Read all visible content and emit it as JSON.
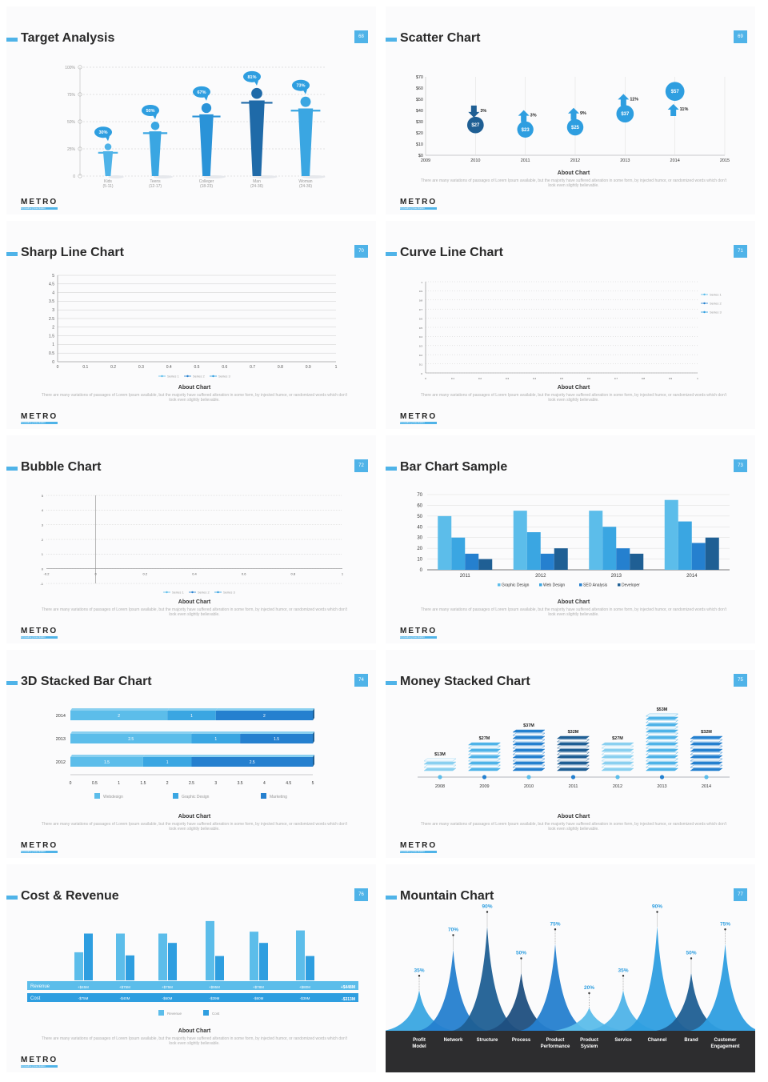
{
  "about_title": "About Chart",
  "about_text": "There are many variations of passages of Lorem Ipsum available, but the majority have suffered alteration in some form, by injected humor, or randomized words which don't look even slightly believable.",
  "logo": {
    "word": "METRO",
    "tagline": "innovative presentation"
  },
  "colors": {
    "accent": "#4fb3e8",
    "blue1": "#5cbdea",
    "blue2": "#2e9ee0",
    "blue3": "#2580cf",
    "blue4": "#1f6aa8",
    "dark": "#2d2d2f"
  },
  "slides": {
    "target": {
      "title": "Target Analysis",
      "number": "68",
      "chart_data": {
        "type": "bar",
        "categories": [
          "Kids\n(5-11)",
          "Teens\n(12-17)",
          "Colleger\n(18-23)",
          "Man\n(24-36)",
          "Woman\n(24-36)"
        ],
        "category_names": [
          "Kids",
          "Teens",
          "Colleger",
          "Man",
          "Woman"
        ],
        "category_ranges": [
          "(5-11)",
          "(12-17)",
          "(18-23)",
          "(24-36)",
          "(24-36)"
        ],
        "values": [
          30,
          50,
          67,
          81,
          73
        ],
        "labels": [
          "30%",
          "50%",
          "67%",
          "81%",
          "73%"
        ],
        "yticks": [
          "100%",
          "75%",
          "50%",
          "25%",
          "0"
        ],
        "ylim": [
          0,
          100
        ]
      }
    },
    "scatter": {
      "title": "Scatter Chart",
      "number": "69",
      "chart_data": {
        "type": "scatter",
        "x": [
          2010,
          2011,
          2012,
          2013,
          2014
        ],
        "values": [
          27,
          23,
          25,
          37,
          57
        ],
        "labels": [
          "$27",
          "$23",
          "$25",
          "$37",
          "$57"
        ],
        "changes": [
          "3%",
          "3%",
          "9%",
          "11%",
          "11%"
        ],
        "directions": [
          "down",
          "up",
          "up",
          "up",
          "up"
        ],
        "xticks": [
          "2009",
          "2010",
          "2011",
          "2012",
          "2013",
          "2014",
          "2015"
        ],
        "yticks": [
          "$70",
          "$60",
          "$50",
          "$40",
          "$30",
          "$20",
          "$10",
          "$0"
        ],
        "ylim": [
          0,
          70
        ]
      }
    },
    "sharp": {
      "title": "Sharp Line Chart",
      "number": "70",
      "chart_data": {
        "type": "line",
        "yticks": [
          "5",
          "4.5",
          "4",
          "3.5",
          "3",
          "2.5",
          "2",
          "1.5",
          "1",
          "0.5",
          "0"
        ],
        "xticks": [
          "0",
          "0.1",
          "0.2",
          "0.3",
          "0.4",
          "0.5",
          "0.6",
          "0.7",
          "0.8",
          "0.9",
          "1"
        ],
        "legend": [
          "Series 1",
          "Series 2",
          "Series 3"
        ],
        "ylim": [
          0,
          5
        ],
        "xlim": [
          0,
          1
        ]
      }
    },
    "curve": {
      "title": "Curve Line Chart",
      "number": "71",
      "chart_data": {
        "type": "line",
        "yticks": [
          "1",
          "0.9",
          "0.8",
          "0.7",
          "0.6",
          "0.5",
          "0.4",
          "0.3",
          "0.2",
          "0.1",
          "0"
        ],
        "xticks": [
          "0",
          "0.1",
          "0.2",
          "0.3",
          "0.4",
          "0.5",
          "0.6",
          "0.7",
          "0.8",
          "0.9",
          "1"
        ],
        "legend": [
          "Series 1",
          "Series 2",
          "Series 3"
        ],
        "ylim": [
          0,
          1
        ],
        "xlim": [
          0,
          1
        ]
      }
    },
    "bubble": {
      "title": "Bubble Chart",
      "number": "72",
      "chart_data": {
        "type": "scatter",
        "yticks": [
          "5",
          "4",
          "3",
          "2",
          "1",
          "0",
          "-1"
        ],
        "xticks": [
          "-0.2",
          "0",
          "0.2",
          "0.4",
          "0.6",
          "0.8",
          "1"
        ],
        "legend": [
          "Series 1",
          "Series 2",
          "Series 3"
        ],
        "ylim": [
          -1,
          5
        ],
        "xlim": [
          -0.2,
          1
        ]
      }
    },
    "barsample": {
      "title": "Bar Chart Sample",
      "number": "73",
      "chart_data": {
        "type": "bar",
        "categories": [
          "2011",
          "2012",
          "2013",
          "2014"
        ],
        "series": [
          {
            "name": "Graphic Design",
            "values": [
              50,
              55,
              55,
              65
            ]
          },
          {
            "name": "Web Design",
            "values": [
              30,
              35,
              40,
              45
            ]
          },
          {
            "name": "SEO Analysis",
            "values": [
              15,
              15,
              20,
              25
            ]
          },
          {
            "name": "Developer",
            "values": [
              10,
              20,
              15,
              30
            ]
          }
        ],
        "yticks": [
          "70",
          "60",
          "50",
          "40",
          "30",
          "20",
          "10",
          "0"
        ],
        "ylim": [
          0,
          70
        ]
      }
    },
    "stacked3d": {
      "title": "3D Stacked Bar Chart",
      "number": "74",
      "chart_data": {
        "type": "bar",
        "orientation": "horizontal",
        "categories": [
          "2014",
          "2013",
          "2012"
        ],
        "series": [
          {
            "name": "Webdesign",
            "values": [
              2,
              2.5,
              1.5
            ]
          },
          {
            "name": "Graphic Design",
            "values": [
              1,
              1,
              1
            ]
          },
          {
            "name": "Marketing",
            "values": [
              2,
              1.5,
              2.5
            ]
          }
        ],
        "xticks": [
          "0",
          "0.5",
          "1",
          "1.5",
          "2",
          "2.5",
          "3",
          "3.5",
          "4",
          "4.5",
          "5"
        ],
        "xlim": [
          0,
          5
        ]
      }
    },
    "money": {
      "title": "Money Stacked Chart",
      "number": "75",
      "chart_data": {
        "type": "bar",
        "categories": [
          "2008",
          "2009",
          "2010",
          "2011",
          "2012",
          "2013",
          "2014"
        ],
        "values": [
          13,
          27,
          37,
          32,
          27,
          53,
          32
        ],
        "labels": [
          "$13M",
          "$27M",
          "$37M",
          "$32M",
          "$27M",
          "$53M",
          "$32M"
        ]
      }
    },
    "costrev": {
      "title": "Cost & Revenue",
      "number": "76",
      "chart_data": {
        "type": "bar",
        "row_labels": [
          "Revenue",
          "Cost"
        ],
        "series": [
          {
            "name": "Revenue",
            "values": [
              45,
              75,
              75,
              95,
              78,
              80
            ]
          },
          {
            "name": "Cost",
            "values": [
              75,
              40,
              60,
              39,
              60,
              39
            ]
          }
        ],
        "revenue_labels": [
          "+$45M",
          "+$75M",
          "+$75M",
          "+$95M",
          "+$78M",
          "+$80M"
        ],
        "cost_labels": [
          "-$75M",
          "-$40M",
          "-$60M",
          "-$39M",
          "-$60M",
          "-$39M"
        ],
        "revenue_total": "+$448M",
        "cost_total": "-$313M"
      }
    },
    "mountain": {
      "title": "Mountain Chart",
      "number": "77",
      "chart_data": {
        "type": "area",
        "categories": [
          "Profit\nModel",
          "Network",
          "Structure",
          "Process",
          "Product\nPerformance",
          "Product\nSystem",
          "Service",
          "Channel",
          "Brand",
          "Customer\nEngagement"
        ],
        "values": [
          35,
          70,
          90,
          50,
          75,
          20,
          35,
          90,
          50,
          75
        ],
        "labels": [
          "35%",
          "70%",
          "90%",
          "50%",
          "75%",
          "20%",
          "35%",
          "90%",
          "50%",
          "75%"
        ]
      }
    }
  }
}
